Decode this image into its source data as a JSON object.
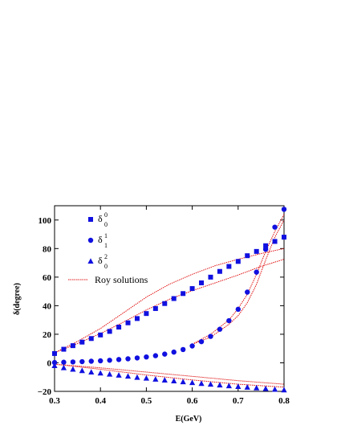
{
  "chart_data": {
    "type": "scatter",
    "xlabel": "E(GeV)",
    "ylabel": "δ(degree)",
    "xlim": [
      0.3,
      0.8
    ],
    "ylim": [
      -20,
      110
    ],
    "x_ticks": [
      "0.3",
      "0.4",
      "0.5",
      "0.6",
      "0.7",
      "0.8"
    ],
    "y_ticks": [
      "−20",
      "0",
      "20",
      "40",
      "60",
      "80",
      "100"
    ],
    "grid": false,
    "legend_position": "top-left",
    "marker_color": "#1010e0",
    "line_color": "#e01010",
    "series": [
      {
        "name": "δ",
        "sup": "0",
        "sub": "0",
        "marker": "square",
        "x": [
          0.3,
          0.32,
          0.34,
          0.36,
          0.38,
          0.4,
          0.42,
          0.44,
          0.46,
          0.48,
          0.5,
          0.52,
          0.54,
          0.56,
          0.58,
          0.6,
          0.62,
          0.64,
          0.66,
          0.68,
          0.7,
          0.72,
          0.74,
          0.76,
          0.78,
          0.8
        ],
        "y": [
          6.5,
          9.5,
          12,
          14.5,
          17,
          19.5,
          22,
          25,
          28,
          31,
          34.5,
          38,
          41.5,
          45,
          48.5,
          52,
          56,
          60,
          64,
          67.5,
          71,
          75,
          78,
          82,
          85,
          88
        ]
      },
      {
        "name": "δ",
        "sup": "1",
        "sub": "1",
        "marker": "circle",
        "x": [
          0.3,
          0.32,
          0.34,
          0.36,
          0.38,
          0.4,
          0.42,
          0.44,
          0.46,
          0.48,
          0.5,
          0.52,
          0.54,
          0.56,
          0.58,
          0.6,
          0.62,
          0.64,
          0.66,
          0.68,
          0.7,
          0.72,
          0.74,
          0.76,
          0.78,
          0.8
        ],
        "y": [
          0.2,
          0.4,
          0.6,
          0.8,
          1.1,
          1.4,
          1.8,
          2.3,
          2.8,
          3.4,
          4.1,
          5,
          6.1,
          7.5,
          9.3,
          11.8,
          14.8,
          18.5,
          23.5,
          29.5,
          37.5,
          49.5,
          63.5,
          79.5,
          95,
          107.5
        ]
      },
      {
        "name": "δ",
        "sup": "2",
        "sub": "0",
        "marker": "triangle",
        "x": [
          0.3,
          0.32,
          0.34,
          0.36,
          0.38,
          0.4,
          0.42,
          0.44,
          0.46,
          0.48,
          0.5,
          0.52,
          0.54,
          0.56,
          0.58,
          0.6,
          0.62,
          0.64,
          0.66,
          0.68,
          0.7,
          0.72,
          0.74,
          0.76,
          0.78,
          0.8
        ],
        "y": [
          -2,
          -3.5,
          -4.5,
          -5.5,
          -6.5,
          -7.2,
          -8,
          -8.7,
          -9.4,
          -10.2,
          -10.8,
          -11.5,
          -12.1,
          -12.7,
          -13.3,
          -13.9,
          -14.5,
          -15,
          -15.6,
          -16.1,
          -16.6,
          -17.1,
          -17.6,
          -18.1,
          -18.6,
          -19
        ]
      }
    ],
    "roy_solutions": {
      "label": "Roy solutions",
      "curves": [
        {
          "x": [
            0.3,
            0.35,
            0.4,
            0.45,
            0.5,
            0.55,
            0.6,
            0.65,
            0.7,
            0.75,
            0.8
          ],
          "y": [
            7,
            13.5,
            20.5,
            28.5,
            37,
            44.5,
            50.5,
            56,
            61.5,
            67.5,
            72.5
          ]
        },
        {
          "x": [
            0.3,
            0.35,
            0.4,
            0.45,
            0.5,
            0.55,
            0.6,
            0.65,
            0.7,
            0.75,
            0.8
          ],
          "y": [
            7,
            15,
            24,
            35,
            46,
            55,
            62,
            68,
            72.5,
            76.5,
            80
          ]
        },
        {
          "x": [
            0.6,
            0.64,
            0.68,
            0.7,
            0.72,
            0.74,
            0.76,
            0.78,
            0.8
          ],
          "y": [
            13,
            20,
            30,
            38,
            48,
            62,
            78,
            92,
            104
          ]
        },
        {
          "x": [
            0.6,
            0.64,
            0.68,
            0.7,
            0.72,
            0.74,
            0.76,
            0.78,
            0.8
          ],
          "y": [
            13,
            18,
            27,
            33,
            42,
            55,
            72,
            88,
            100
          ]
        },
        {
          "x": [
            0.3,
            0.4,
            0.5,
            0.6,
            0.7,
            0.8
          ],
          "y": [
            -1,
            -3.5,
            -6.5,
            -9.5,
            -12.5,
            -15
          ]
        },
        {
          "x": [
            0.3,
            0.4,
            0.5,
            0.6,
            0.7,
            0.8
          ],
          "y": [
            -1,
            -4.5,
            -8.5,
            -12,
            -15,
            -17
          ]
        }
      ]
    }
  }
}
